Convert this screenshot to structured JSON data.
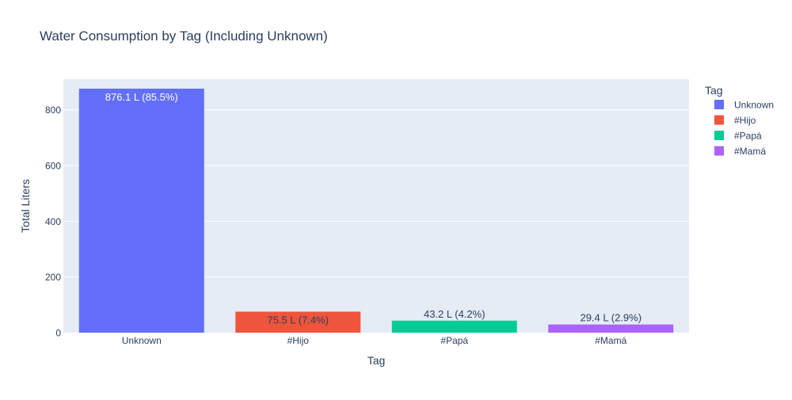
{
  "chart_data": {
    "type": "bar",
    "title": "Water Consumption by Tag (Including Unknown)",
    "xlabel": "Tag",
    "ylabel": "Total Liters",
    "ylim": [
      0,
      910
    ],
    "yticks": [
      0,
      200,
      400,
      600,
      800
    ],
    "ytick_labels": [
      "0",
      "200",
      "400",
      "600",
      "800"
    ],
    "categories": [
      "Unknown",
      "#Hijo",
      "#Papá",
      "#Mamá"
    ],
    "values": [
      876.1,
      75.5,
      43.2,
      29.4
    ],
    "data_labels": [
      "876.1 L (85.5%)",
      "75.5 L (7.4%)",
      "43.2 L (4.2%)",
      "29.4 L (2.9%)"
    ],
    "colors": [
      "#636efa",
      "#EF553B",
      "#00cc96",
      "#ab63fa"
    ],
    "legend": {
      "title": "Tag",
      "placement": "right",
      "entries": [
        "Unknown",
        "#Hijo",
        "#Papá",
        "#Mamá"
      ]
    },
    "grid": true,
    "plot_background": "#e5ecf6"
  }
}
